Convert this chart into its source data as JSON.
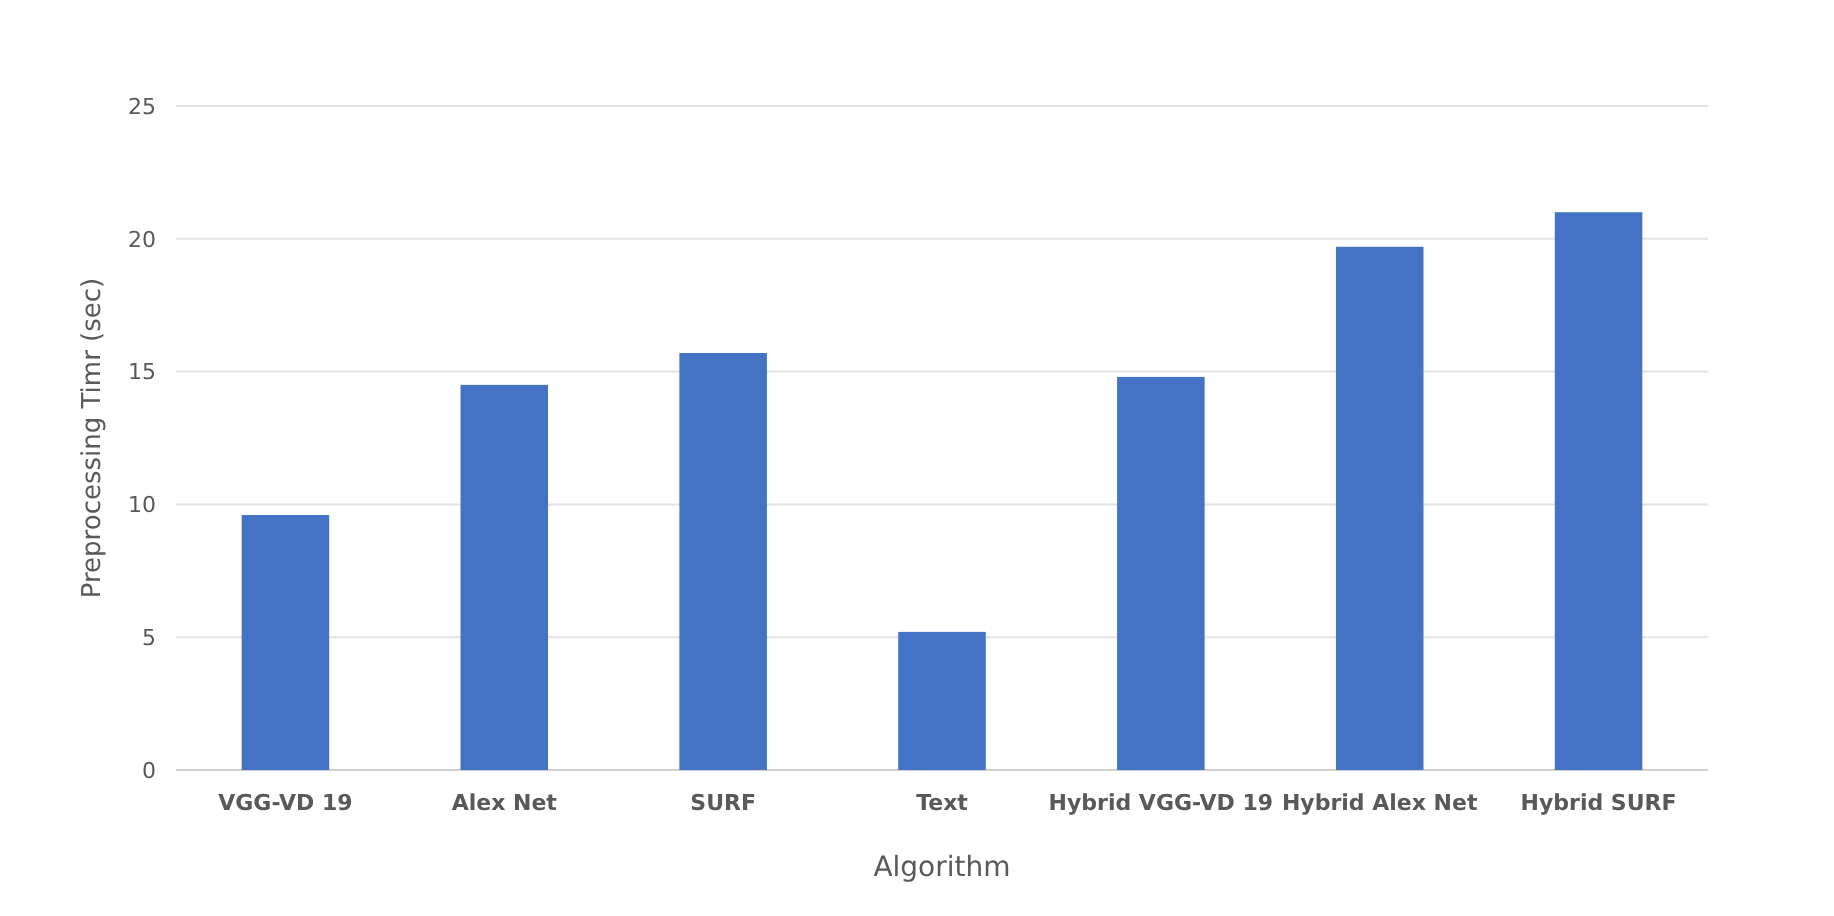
{
  "chart_data": {
    "type": "bar",
    "xlabel": "Algorithm",
    "ylabel": "Preprocessing Timr (sec)",
    "categories": [
      "VGG-VD 19",
      "Alex Net",
      "SURF",
      "Text",
      "Hybrid VGG-VD 19",
      "Hybrid Alex Net",
      "Hybrid SURF"
    ],
    "values": [
      9.6,
      14.5,
      15.7,
      5.2,
      14.8,
      19.7,
      21.0
    ],
    "color": "#4472c4",
    "ylim": [
      0,
      25
    ],
    "yticks": [
      0,
      5,
      10,
      15,
      20,
      25
    ],
    "grid": "y"
  }
}
